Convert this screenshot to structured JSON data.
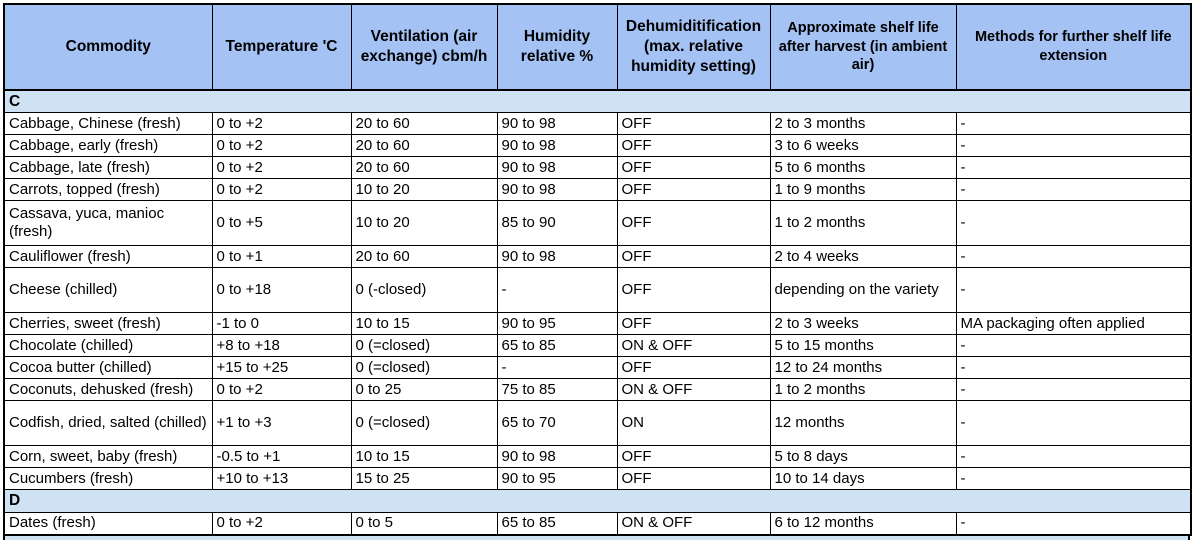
{
  "colors": {
    "header_bg": "#a4c2f4",
    "section_bg": "#cfe2f3",
    "border": "#000000",
    "row_bg": "#ffffff"
  },
  "table": {
    "columns": [
      "Commodity",
      "Temperature 'C",
      "Ventilation (air exchange) cbm/h",
      "Humidity relative %",
      "Dehumiditification (max. relative humidity setting)",
      "Approximate shelf life after harvest (in ambient air)",
      "Methods for further shelf life extension"
    ],
    "column_keys": [
      "commodity",
      "temperature",
      "ventilation",
      "humidity",
      "dehumidification",
      "shelf-life",
      "extension-methods"
    ],
    "sections": [
      {
        "letter": "C",
        "rows": [
          [
            "Cabbage, Chinese (fresh)",
            "0 to +2",
            "20 to 60",
            "90 to 98",
            "OFF",
            "2 to 3 months",
            "-"
          ],
          [
            "Cabbage, early (fresh)",
            "0 to +2",
            "20 to 60",
            "90 to 98",
            "OFF",
            "3 to 6 weeks",
            "-"
          ],
          [
            "Cabbage, late (fresh)",
            "0 to +2",
            "20 to 60",
            "90 to 98",
            "OFF",
            "5 to 6 months",
            "-"
          ],
          [
            "Carrots, topped (fresh)",
            "0 to +2",
            "10 to 20",
            "90 to 98",
            "OFF",
            "1 to 9 months",
            "-"
          ],
          [
            "Cassava, yuca, manioc (fresh)",
            "0 to +5",
            "10 to 20",
            "85 to 90",
            "OFF",
            "1 to 2 months",
            "-"
          ],
          [
            "Cauliflower (fresh)",
            "0 to +1",
            "20 to 60",
            "90 to 98",
            "OFF",
            "2 to 4 weeks",
            "-"
          ],
          [
            "Cheese (chilled)",
            "0 to +18",
            "0 (-closed)",
            "-",
            "OFF",
            "depending on the variety",
            "-"
          ],
          [
            "Cherries, sweet (fresh)",
            "-1 to 0",
            "10 to 15",
            "90 to 95",
            "OFF",
            "2 to 3 weeks",
            "MA packaging often applied"
          ],
          [
            "Chocolate (chilled)",
            "+8 to +18",
            "0 (=closed)",
            "65 to 85",
            "ON & OFF",
            "5 to 15 months",
            "-"
          ],
          [
            "Cocoa butter (chilled)",
            "+15 to +25",
            "0 (=closed)",
            "-",
            "OFF",
            "12 to 24 months",
            "-"
          ],
          [
            "Coconuts, dehusked (fresh)",
            "0 to +2",
            "0 to 25",
            "75 to 85",
            "ON & OFF",
            "1 to 2 months",
            "-"
          ],
          [
            "Codfish, dried, salted (chilled)",
            "+1 to +3",
            "0 (=closed)",
            "65 to 70",
            "ON",
            "12 months",
            "-"
          ],
          [
            "Corn, sweet, baby (fresh)",
            "-0.5 to +1",
            "10 to 15",
            "90 to 98",
            "OFF",
            "5 to 8 days",
            "-"
          ],
          [
            "Cucumbers (fresh)",
            "+10 to +13",
            "15 to 25",
            "90 to 95",
            "OFF",
            "10 to 14 days",
            "-"
          ]
        ]
      },
      {
        "letter": "D",
        "rows": [
          [
            "Dates (fresh)",
            "0 to +2",
            "0 to 5",
            "65 to 85",
            "ON & OFF",
            "6 to 12 months",
            "-"
          ]
        ]
      }
    ]
  }
}
